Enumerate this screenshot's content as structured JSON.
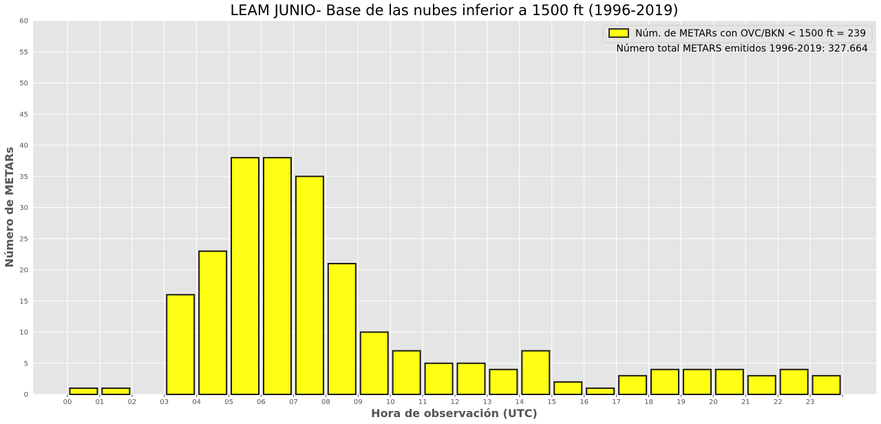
{
  "chart_data": {
    "type": "bar",
    "title": "LEAM JUNIO- Base de las nubes inferior a 1500 ft (1996-2019)",
    "xlabel": "Hora de observación (UTC)",
    "ylabel": "Número de METARs",
    "categories": [
      "00",
      "01",
      "02",
      "03",
      "04",
      "05",
      "06",
      "07",
      "08",
      "09",
      "10",
      "11",
      "12",
      "13",
      "14",
      "15",
      "16",
      "17",
      "18",
      "19",
      "20",
      "21",
      "22",
      "23"
    ],
    "series": [
      {
        "name": "Núm. de METARs con OVC/BKN < 1500 ft = 239",
        "values": [
          1,
          1,
          0,
          16,
          23,
          38,
          38,
          35,
          21,
          10,
          7,
          5,
          5,
          4,
          7,
          2,
          1,
          3,
          4,
          4,
          4,
          3,
          4,
          3
        ]
      }
    ],
    "ylim": [
      0,
      60
    ],
    "yticks": [
      0,
      5,
      10,
      15,
      20,
      25,
      30,
      35,
      40,
      45,
      50,
      55,
      60
    ],
    "grid": true,
    "legend_position": "top-right",
    "legend_note": "Número total METARS emitidos 1996-2019: 327.664",
    "bar_color": "#ffff14",
    "bar_edge_color": "#1a1a1a",
    "background_color": "#e5e5e5",
    "grid_color": "#ffffff"
  }
}
